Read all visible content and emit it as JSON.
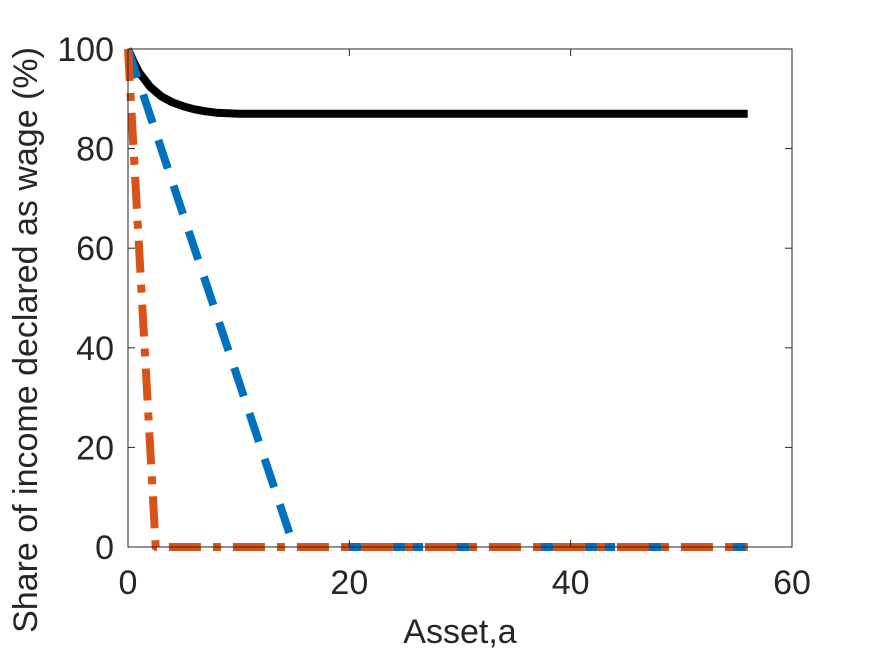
{
  "chart_data": {
    "type": "line",
    "title": "",
    "xlabel": "Asset,a",
    "ylabel": "Share of income declared as wage (%)",
    "xlim": [
      0,
      60
    ],
    "ylim": [
      0,
      100
    ],
    "xticks": [
      0,
      20,
      40,
      60
    ],
    "yticks": [
      0,
      20,
      40,
      60,
      80,
      100
    ],
    "xtick_labels": [
      "0",
      "20",
      "40",
      "60"
    ],
    "ytick_labels": [
      "0",
      "20",
      "40",
      "60",
      "80",
      "100"
    ],
    "grid": false,
    "legend": "none",
    "series": [
      {
        "style": "solid",
        "color": "#000000",
        "x": [
          0,
          0.5,
          1,
          2,
          3,
          4,
          5,
          6,
          7,
          8,
          10,
          20,
          30,
          40,
          50,
          56
        ],
        "y": [
          100,
          97.5,
          95.3,
          92.4,
          90.5,
          89.3,
          88.5,
          87.9,
          87.5,
          87.2,
          87,
          87,
          87,
          87,
          87,
          87
        ]
      },
      {
        "style": "dashed",
        "color": "#0072BD",
        "x": [
          0,
          15,
          56
        ],
        "y": [
          100,
          0,
          0
        ]
      },
      {
        "style": "dashdot",
        "color": "#D95319",
        "x": [
          0,
          2.5,
          56
        ],
        "y": [
          100,
          0,
          0
        ]
      }
    ]
  }
}
